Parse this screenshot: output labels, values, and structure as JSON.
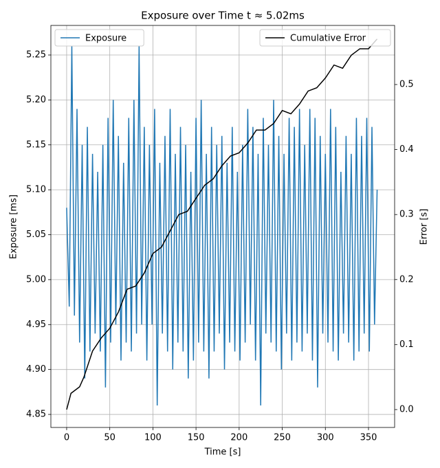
{
  "chart_data": {
    "type": "line",
    "title": "Exposure over Time t ≈ 5.02ms",
    "x_label": "Time [s]",
    "y_label": "Exposure [ms]",
    "y2_label": "Error [s]",
    "xlim": [
      -18.3,
      380.3
    ],
    "xticks": [
      0,
      50,
      100,
      150,
      200,
      250,
      300,
      350
    ],
    "ylim": [
      4.8355,
      5.2829
    ],
    "yticks": [
      4.85,
      {
        "value": 4.9,
        "label": "4.90"
      },
      4.95,
      {
        "value": 5.0,
        "label": "5.00"
      },
      5.05,
      {
        "value": 5.1,
        "label": "5.10"
      },
      5.15,
      {
        "value": 5.2,
        "label": "5.20"
      },
      5.25
    ],
    "y2lim": [
      -0.0275,
      0.5909
    ],
    "y2ticks": [
      {
        "value": 0,
        "label": "0.0"
      },
      0.1,
      0.2,
      0.3,
      0.4,
      0.5
    ],
    "grid": true,
    "series": [
      {
        "name": "Exposure",
        "color": "#1f77b4",
        "legend_loc": "upper left",
        "x": [
          0,
          3,
          6,
          9,
          12,
          15,
          18,
          21,
          24,
          27,
          30,
          33,
          36,
          39,
          42,
          45,
          48,
          51,
          54,
          57,
          60,
          63,
          66,
          69,
          72,
          75,
          78,
          81,
          84,
          87,
          90,
          93,
          96,
          99,
          102,
          105,
          108,
          111,
          114,
          117,
          120,
          123,
          126,
          129,
          132,
          135,
          138,
          141,
          144,
          147,
          150,
          153,
          156,
          159,
          162,
          165,
          168,
          171,
          174,
          177,
          180,
          183,
          186,
          189,
          192,
          195,
          198,
          201,
          204,
          207,
          210,
          213,
          216,
          219,
          222,
          225,
          228,
          231,
          234,
          237,
          240,
          243,
          246,
          249,
          252,
          255,
          258,
          261,
          264,
          267,
          270,
          273,
          276,
          279,
          282,
          285,
          288,
          291,
          294,
          297,
          300,
          303,
          306,
          309,
          312,
          315,
          318,
          321,
          324,
          327,
          330,
          333,
          336,
          339,
          342,
          345,
          348,
          351,
          354,
          357,
          360
        ],
        "values": [
          5.08,
          4.97,
          5.26,
          4.96,
          5.19,
          4.93,
          5.15,
          4.89,
          5.17,
          4.92,
          5.14,
          4.94,
          5.12,
          4.92,
          5.15,
          4.88,
          5.18,
          4.93,
          5.2,
          4.95,
          5.16,
          4.91,
          5.13,
          4.93,
          5.18,
          4.92,
          5.2,
          4.94,
          5.26,
          4.95,
          5.17,
          4.91,
          5.15,
          4.95,
          5.19,
          4.86,
          5.13,
          4.94,
          5.16,
          4.92,
          5.19,
          4.9,
          5.14,
          4.93,
          5.17,
          4.92,
          5.15,
          4.89,
          5.12,
          4.91,
          5.18,
          4.93,
          5.2,
          4.92,
          5.14,
          4.89,
          5.17,
          4.92,
          5.15,
          4.94,
          5.16,
          4.9,
          5.13,
          4.93,
          5.17,
          4.92,
          5.12,
          4.91,
          5.15,
          4.93,
          5.19,
          4.95,
          5.17,
          4.91,
          5.14,
          4.86,
          5.18,
          4.94,
          5.15,
          4.93,
          5.2,
          4.92,
          5.16,
          4.9,
          5.14,
          4.94,
          5.18,
          4.91,
          5.17,
          4.93,
          5.19,
          4.92,
          5.15,
          4.94,
          5.19,
          4.91,
          5.18,
          4.88,
          5.16,
          4.94,
          5.14,
          4.93,
          5.19,
          4.92,
          5.17,
          4.91,
          5.12,
          4.94,
          5.16,
          4.93,
          5.14,
          4.91,
          5.18,
          4.92,
          5.16,
          4.94,
          5.18,
          4.92,
          5.17,
          4.95,
          5.1
        ]
      },
      {
        "name": "Cumulative Error",
        "color": "#000000",
        "axis": "y2",
        "legend_loc": "upper right",
        "x": [
          0,
          5,
          10,
          15,
          20,
          30,
          40,
          50,
          60,
          70,
          80,
          90,
          100,
          110,
          120,
          130,
          140,
          150,
          160,
          170,
          180,
          190,
          200,
          210,
          220,
          230,
          240,
          250,
          260,
          270,
          280,
          290,
          300,
          310,
          320,
          330,
          340,
          350,
          360
        ],
        "values": [
          0.0,
          0.025,
          0.03,
          0.035,
          0.05,
          0.09,
          0.11,
          0.125,
          0.15,
          0.185,
          0.19,
          0.21,
          0.24,
          0.25,
          0.275,
          0.3,
          0.305,
          0.325,
          0.345,
          0.355,
          0.375,
          0.39,
          0.395,
          0.41,
          0.43,
          0.43,
          0.44,
          0.46,
          0.455,
          0.47,
          0.49,
          0.495,
          0.51,
          0.53,
          0.525,
          0.545,
          0.555,
          0.555,
          0.57
        ]
      }
    ]
  }
}
